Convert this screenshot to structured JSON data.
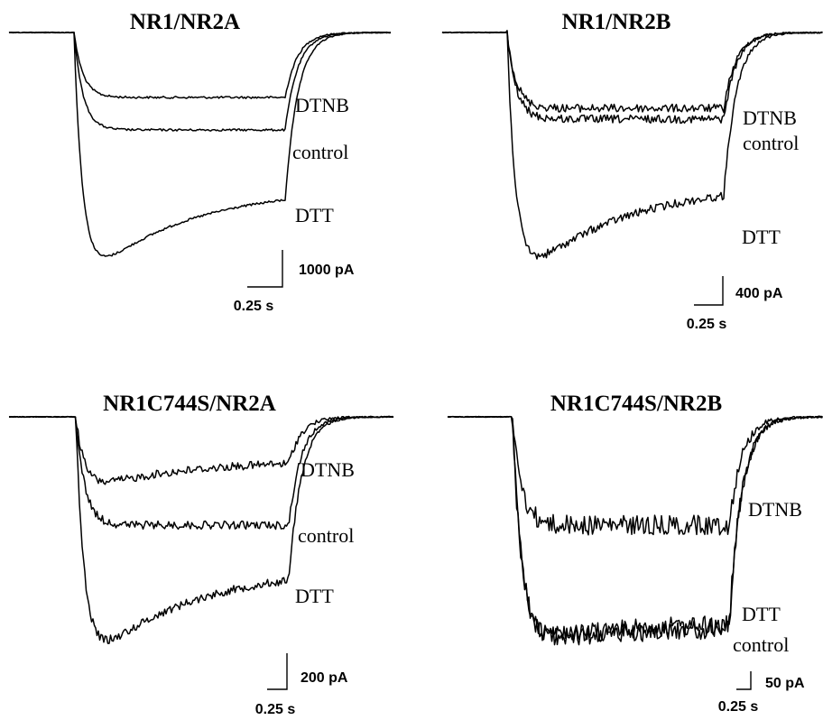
{
  "chart_data": [
    {
      "type": "line",
      "title": "NR1/NR2A",
      "series": [
        {
          "name": "DTNB",
          "level": -0.3,
          "peak": -0.3,
          "noise": "low"
        },
        {
          "name": "control",
          "level": -0.45,
          "peak": -0.45,
          "noise": "low"
        },
        {
          "name": "DTT",
          "level": -0.72,
          "peak": -1.2,
          "noise": "low"
        }
      ],
      "scale_bar": {
        "current": "1000 pA",
        "time": "0.25 s"
      }
    },
    {
      "type": "line",
      "title": "NR1/NR2B",
      "series": [
        {
          "name": "DTNB",
          "level": -0.35,
          "peak": -0.35,
          "noise": "medium"
        },
        {
          "name": "control",
          "level": -0.4,
          "peak": -0.4,
          "noise": "medium"
        },
        {
          "name": "DTT",
          "level": -0.7,
          "peak": -1.2,
          "noise": "medium"
        }
      ],
      "scale_bar": {
        "current": "400 pA",
        "time": "0.25 s"
      }
    },
    {
      "type": "line",
      "title": "NR1C744S/NR2A",
      "series": [
        {
          "name": "DTNB",
          "level": -0.2,
          "peak": -0.35,
          "noise": "medium"
        },
        {
          "name": "control",
          "level": -0.5,
          "peak": -0.5,
          "noise": "medium"
        },
        {
          "name": "DTT",
          "level": -0.7,
          "peak": -1.2,
          "noise": "medium"
        }
      ],
      "scale_bar": {
        "current": "200 pA",
        "time": "0.25 s"
      }
    },
    {
      "type": "line",
      "title": "NR1C744S/NR2B",
      "series": [
        {
          "name": "DTNB",
          "level": -0.5,
          "peak": -0.5,
          "noise": "high"
        },
        {
          "name": "DTT",
          "level": -0.95,
          "peak": -1.05,
          "noise": "high"
        },
        {
          "name": "control",
          "level": -0.97,
          "peak": -1.05,
          "noise": "high"
        }
      ],
      "scale_bar": {
        "current": "50 pA",
        "time": "0.25 s"
      }
    }
  ]
}
